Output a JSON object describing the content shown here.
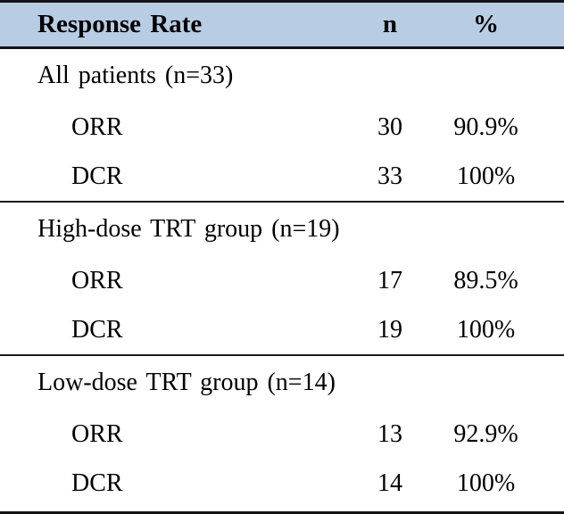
{
  "table": {
    "header": {
      "col_label": "Response Rate",
      "col_n": "n",
      "col_pct": "%",
      "background_color": "#b8cce4"
    },
    "border_color": "#141414",
    "sections": [
      {
        "label": "All patients (n=33)",
        "rows": [
          {
            "label": "ORR",
            "n": "30",
            "pct": "90.9%"
          },
          {
            "label": "DCR",
            "n": "33",
            "pct": "100%"
          }
        ]
      },
      {
        "label": "High-dose TRT group (n=19)",
        "rows": [
          {
            "label": "ORR",
            "n": "17",
            "pct": "89.5%"
          },
          {
            "label": "DCR",
            "n": "19",
            "pct": "100%"
          }
        ]
      },
      {
        "label": "Low-dose TRT group (n=14)",
        "rows": [
          {
            "label": "ORR",
            "n": "13",
            "pct": "92.9%"
          },
          {
            "label": "DCR",
            "n": "14",
            "pct": "100%"
          }
        ]
      }
    ]
  }
}
